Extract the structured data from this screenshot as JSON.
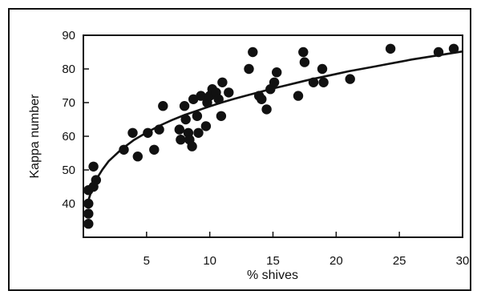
{
  "chart_data": {
    "type": "scatter",
    "title": "",
    "xlabel": "% shives",
    "ylabel": "Kappa number",
    "xlim": [
      0,
      30
    ],
    "ylim": [
      30,
      90
    ],
    "xticks": [
      5,
      10,
      15,
      20,
      25,
      30
    ],
    "yticks": [
      40,
      50,
      60,
      70,
      80,
      90
    ],
    "grid": false,
    "legend": "none",
    "marker_color": "#111111",
    "series": [
      {
        "points": [
          [
            0.4,
            44
          ],
          [
            0.4,
            40
          ],
          [
            0.4,
            37
          ],
          [
            0.4,
            34
          ],
          [
            0.8,
            51
          ],
          [
            1.0,
            47
          ],
          [
            0.8,
            45
          ],
          [
            3.2,
            56
          ],
          [
            3.9,
            61
          ],
          [
            4.3,
            54
          ],
          [
            5.1,
            61
          ],
          [
            5.6,
            56
          ],
          [
            6.0,
            62
          ],
          [
            6.3,
            69
          ],
          [
            7.6,
            62
          ],
          [
            7.7,
            59
          ],
          [
            8.0,
            69
          ],
          [
            8.1,
            65
          ],
          [
            8.3,
            61
          ],
          [
            8.4,
            59
          ],
          [
            8.6,
            57
          ],
          [
            8.7,
            71
          ],
          [
            9.0,
            66
          ],
          [
            9.1,
            61
          ],
          [
            9.3,
            72
          ],
          [
            9.7,
            63
          ],
          [
            9.8,
            70
          ],
          [
            10.0,
            72
          ],
          [
            10.2,
            74
          ],
          [
            10.5,
            73
          ],
          [
            10.7,
            71
          ],
          [
            10.9,
            66
          ],
          [
            11.0,
            76
          ],
          [
            11.5,
            73
          ],
          [
            13.1,
            80
          ],
          [
            13.4,
            85
          ],
          [
            13.9,
            72
          ],
          [
            14.1,
            71
          ],
          [
            14.5,
            68
          ],
          [
            14.8,
            74
          ],
          [
            15.1,
            76
          ],
          [
            15.3,
            79
          ],
          [
            17.0,
            72
          ],
          [
            17.4,
            85
          ],
          [
            17.5,
            82
          ],
          [
            18.2,
            76
          ],
          [
            18.9,
            80
          ],
          [
            19.0,
            76
          ],
          [
            21.1,
            77
          ],
          [
            24.3,
            86
          ],
          [
            28.1,
            85
          ],
          [
            29.3,
            86
          ]
        ]
      }
    ],
    "fit_curve": [
      [
        0.4,
        41
      ],
      [
        0.7,
        44.5
      ],
      [
        1,
        47.1
      ],
      [
        1.5,
        50.1
      ],
      [
        2,
        52.6
      ],
      [
        3,
        56.1
      ],
      [
        4,
        58.9
      ],
      [
        5,
        61.1
      ],
      [
        6,
        63.1
      ],
      [
        7,
        64.8
      ],
      [
        8,
        66.3
      ],
      [
        9,
        67.6
      ],
      [
        10,
        68.9
      ],
      [
        11,
        70.1
      ],
      [
        12,
        71.2
      ],
      [
        13,
        72.2
      ],
      [
        14,
        73.2
      ],
      [
        15,
        74.2
      ],
      [
        16,
        75.1
      ],
      [
        17,
        76.0
      ],
      [
        18,
        76.9
      ],
      [
        19,
        77.7
      ],
      [
        20,
        78.5
      ],
      [
        21,
        79.3
      ],
      [
        22,
        80.0
      ],
      [
        23,
        80.7
      ],
      [
        24,
        81.4
      ],
      [
        25,
        82.1
      ],
      [
        26,
        82.8
      ],
      [
        27,
        83.4
      ],
      [
        28,
        84.0
      ],
      [
        29,
        84.6
      ],
      [
        30,
        85.2
      ]
    ]
  }
}
